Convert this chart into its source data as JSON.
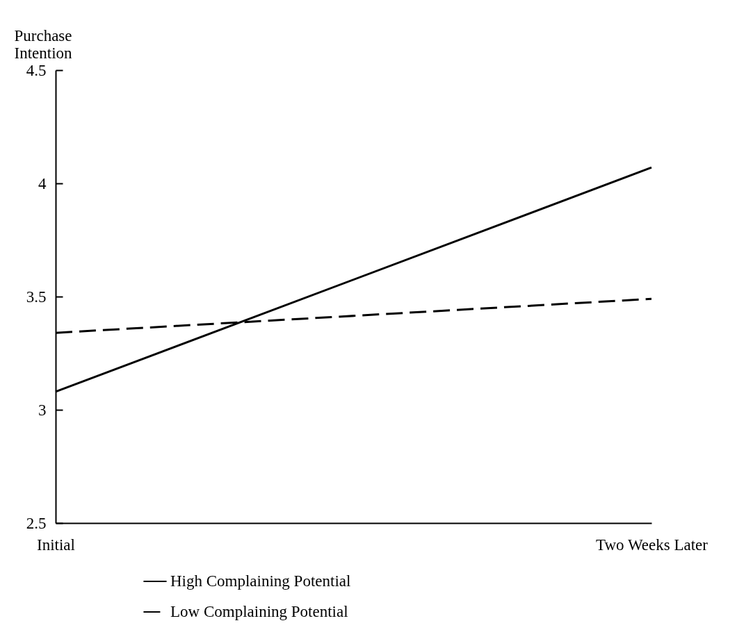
{
  "chart_data": {
    "type": "line",
    "ylabel": "Purchase Intention",
    "categories": [
      "Initial",
      "Two Weeks Later"
    ],
    "series": [
      {
        "name": "High Complaining Potential",
        "color": "#000000",
        "values": [
          3.08,
          4.07
        ],
        "line_style": "solid"
      },
      {
        "name": "Low Complaining Potential",
        "color": "#000000",
        "values": [
          3.34,
          3.49
        ],
        "line_style": "dashed"
      }
    ],
    "ylim": [
      2.5,
      4.5
    ],
    "yticks": [
      2.5,
      3,
      3.5,
      4,
      4.5
    ],
    "grid": false,
    "legend": "bottom",
    "marker": "none"
  }
}
